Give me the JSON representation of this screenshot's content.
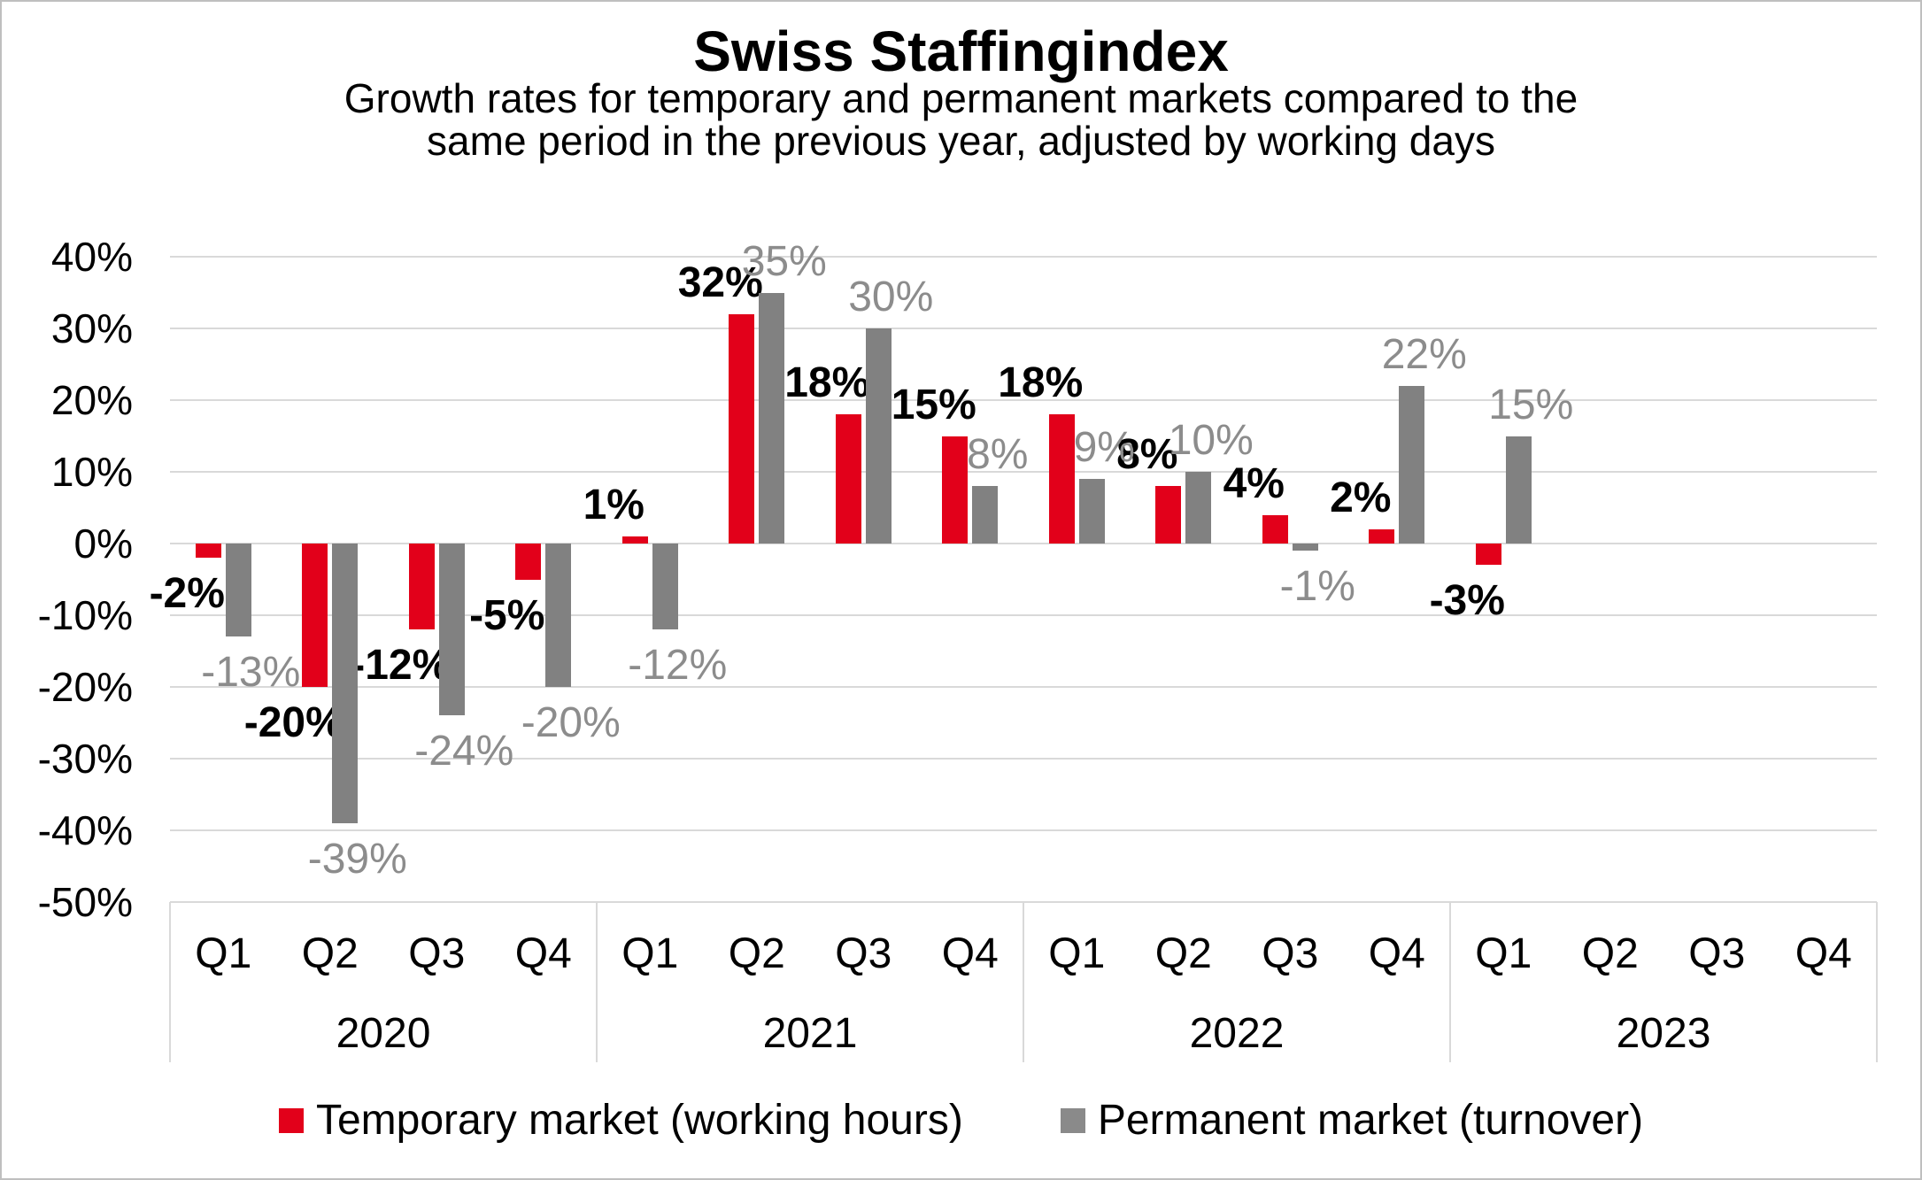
{
  "page": {
    "background": "#ffffff",
    "border_color": "#bfbfbf"
  },
  "header": {
    "title": "Swiss Staffingindex",
    "subtitle_lines": [
      "Growth rates for temporary and permanent markets compared to the",
      "same period in the previous year, adjusted by working days"
    ]
  },
  "y_axis": {
    "tick_labels": [
      "40%",
      "30%",
      "20%",
      "10%",
      "0%",
      "-10%",
      "-20%",
      "-30%",
      "-40%",
      "-50%"
    ]
  },
  "x_axis": {
    "quarter_labels": [
      "Q1",
      "Q2",
      "Q3",
      "Q4"
    ],
    "year_labels": [
      "2020",
      "2021",
      "2022",
      "2023"
    ]
  },
  "legend": {
    "items": [
      {
        "label": "Temporary market (working hours)",
        "color": "#e2001a"
      },
      {
        "label": "Permanent market (turnover)",
        "color": "#8a8a8a"
      }
    ]
  },
  "colors": {
    "temporary_bar": "#e2001a",
    "permanent_bar": "#818181",
    "gridline": "#d9d9d9",
    "gray_data_label": "#8c8c8c",
    "text": "#000000"
  },
  "chart_data": {
    "type": "bar",
    "title": "Swiss Staffingindex",
    "subtitle": "Growth rates for temporary and permanent markets compared to the same period in the previous year, adjusted by working days",
    "xlabel": "",
    "ylabel": "",
    "unit": "%",
    "ylim": [
      -50,
      40
    ],
    "ytick_step": 10,
    "grid": true,
    "legend_position": "bottom",
    "years": [
      "2020",
      "2021",
      "2022",
      "2023"
    ],
    "quarters_per_year": [
      "Q1",
      "Q2",
      "Q3",
      "Q4"
    ],
    "categories": [
      "2020 Q1",
      "2020 Q2",
      "2020 Q3",
      "2020 Q4",
      "2021 Q1",
      "2021 Q2",
      "2021 Q3",
      "2021 Q4",
      "2022 Q1",
      "2022 Q2",
      "2022 Q3",
      "2022 Q4",
      "2023 Q1",
      "2023 Q2",
      "2023 Q3",
      "2023 Q4"
    ],
    "series": [
      {
        "name": "Temporary market (working hours)",
        "color": "#e2001a",
        "data_label_style": "bold-black",
        "values": [
          -2,
          -20,
          -12,
          -5,
          1,
          32,
          18,
          15,
          18,
          8,
          4,
          2,
          -3,
          null,
          null,
          null
        ]
      },
      {
        "name": "Permanent market (turnover)",
        "color": "#818181",
        "data_label_style": "gray",
        "values": [
          -13,
          -39,
          -24,
          -20,
          -12,
          35,
          30,
          8,
          9,
          10,
          -1,
          22,
          15,
          null,
          null,
          null
        ]
      }
    ]
  }
}
